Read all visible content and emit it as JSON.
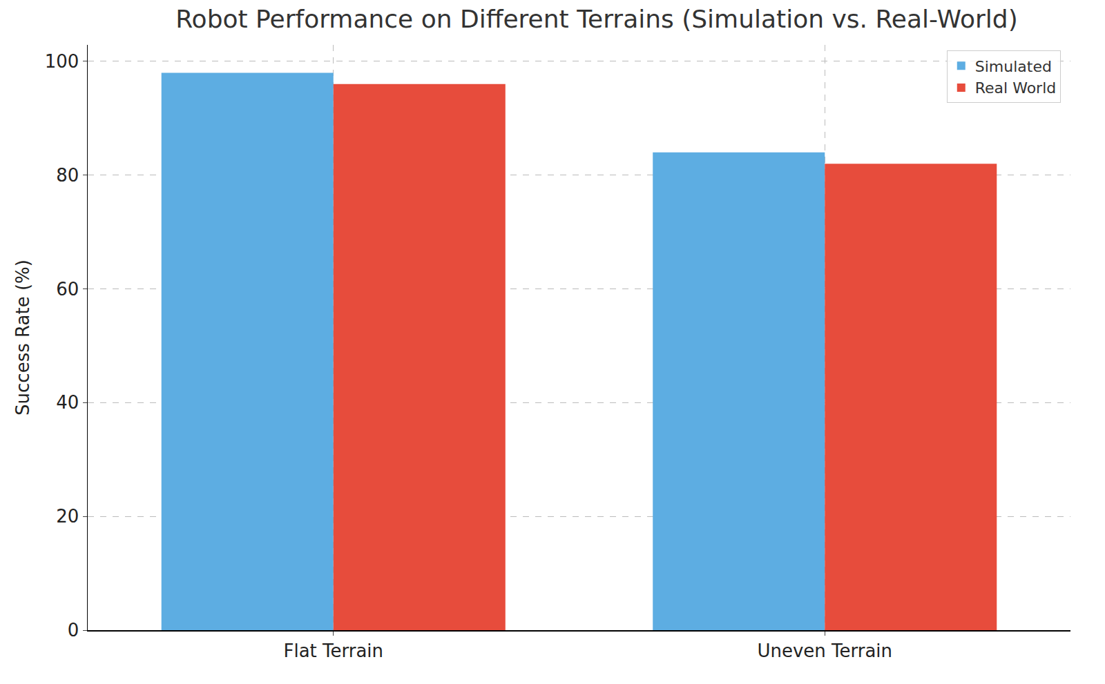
{
  "chart_data": {
    "type": "bar",
    "title": "Robot Performance on Different Terrains (Simulation vs. Real-World)",
    "y_label": "Success Rate (%)",
    "categories": [
      "Flat Terrain",
      "Uneven Terrain"
    ],
    "series": [
      {
        "name": "Simulated",
        "color": "#5dade2",
        "values": [
          98,
          84
        ]
      },
      {
        "name": "Real World",
        "color": "#e74c3c",
        "values": [
          96,
          82
        ]
      }
    ],
    "ylim": [
      0,
      102.9
    ],
    "yticks": [
      0,
      20,
      40,
      60,
      80,
      100
    ],
    "grid": true,
    "legend": "upper right"
  }
}
